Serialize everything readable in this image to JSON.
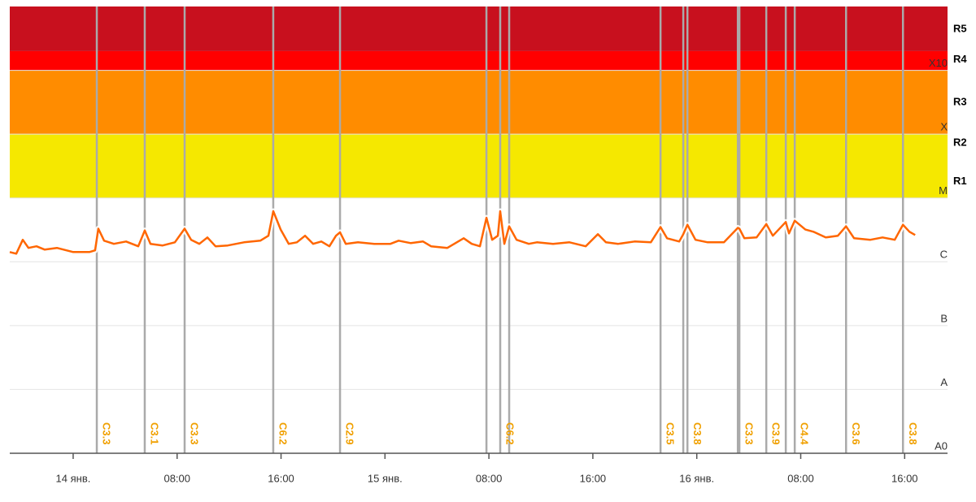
{
  "chart_data": {
    "type": "line",
    "xlim": [
      -4.88,
      67.3
    ],
    "xticks": [
      {
        "value": 0,
        "label": "14 янв."
      },
      {
        "value": 8,
        "label": "08:00"
      },
      {
        "value": 16,
        "label": "16:00"
      },
      {
        "value": 24,
        "label": "15 янв."
      },
      {
        "value": 32,
        "label": "08:00"
      },
      {
        "value": 40,
        "label": "16:00"
      },
      {
        "value": 48,
        "label": "16 янв."
      },
      {
        "value": 56,
        "label": "08:00"
      },
      {
        "value": 64,
        "label": "16:00"
      }
    ],
    "ylim": [
      1e-09,
      0.01
    ],
    "log_y": true,
    "yticks": [
      {
        "value": 1e-09,
        "label": "A0"
      },
      {
        "value": 1e-08,
        "label": "A"
      },
      {
        "value": 1e-07,
        "label": "B"
      },
      {
        "value": 1e-06,
        "label": "C"
      },
      {
        "value": 1e-05,
        "label": "M"
      },
      {
        "value": 0.0001,
        "label": "X"
      },
      {
        "value": 0.001,
        "label": "X10"
      }
    ],
    "bands": [
      {
        "from": 1e-05,
        "to": 0.0001,
        "color": "#f5e800"
      },
      {
        "from": 0.0001,
        "to": 0.001,
        "color": "#ff8c00"
      },
      {
        "from": 0.001,
        "to": 0.002,
        "color": "#ff0000"
      },
      {
        "from": 0.002,
        "to": 0.01,
        "color": "#c8101e"
      }
    ],
    "r_levels": [
      {
        "label": "R1",
        "value": 1.6e-05
      },
      {
        "label": "R2",
        "value": 6.5e-05
      },
      {
        "label": "R3",
        "value": 0.00028
      },
      {
        "label": "R4",
        "value": 0.0013
      },
      {
        "label": "R5",
        "value": 0.0039
      }
    ],
    "color": "#ff6600",
    "x": [
      -4.88,
      -4.38,
      -3.88,
      -3.44,
      -2.82,
      -2.19,
      -1.25,
      0,
      1.25,
      1.69,
      1.94,
      2.38,
      3.13,
      4.07,
      5.01,
      5.51,
      5.95,
      6.89,
      7.83,
      8.58,
      9.08,
      9.71,
      10.33,
      10.96,
      11.9,
      13.15,
      14.4,
      15.03,
      15.4,
      15.97,
      16.59,
      17.22,
      17.85,
      18.47,
      19.1,
      19.72,
      20.23,
      20.54,
      20.98,
      21.92,
      23.17,
      24.42,
      25.05,
      25.99,
      26.93,
      27.55,
      28.8,
      30.06,
      30.68,
      31.31,
      31.81,
      32.25,
      32.69,
      32.87,
      33.19,
      33.56,
      34.13,
      35.07,
      35.69,
      36.94,
      38.2,
      39.45,
      40.39,
      41.01,
      41.95,
      43.21,
      44.46,
      45.21,
      45.71,
      46.65,
      46.96,
      47.28,
      47.9,
      48.84,
      50.09,
      51.16,
      51.28,
      51.66,
      52.6,
      53.35,
      53.85,
      54.85,
      55.1,
      55.54,
      56.36,
      56.98,
      57.92,
      58.86,
      59.49,
      60.11,
      61.36,
      62.3,
      63.24,
      63.87,
      64.37,
      64.81
    ],
    "values": [
      1.42e-06,
      1.34e-06,
      2.21e-06,
      1.65e-06,
      1.75e-06,
      1.55e-06,
      1.65e-06,
      1.42e-06,
      1.42e-06,
      1.51e-06,
      3.3e-06,
      2.14e-06,
      1.91e-06,
      2.08e-06,
      1.75e-06,
      3.1e-06,
      1.91e-06,
      1.8e-06,
      2.02e-06,
      3.3e-06,
      2.21e-06,
      1.91e-06,
      2.41e-06,
      1.75e-06,
      1.8e-06,
      2.02e-06,
      2.14e-06,
      2.56e-06,
      6.2e-06,
      3.2e-06,
      1.91e-06,
      2.02e-06,
      2.56e-06,
      1.91e-06,
      2.08e-06,
      1.75e-06,
      2.56e-06,
      2.9e-06,
      1.91e-06,
      2.02e-06,
      1.91e-06,
      1.91e-06,
      2.14e-06,
      1.96e-06,
      2.08e-06,
      1.75e-06,
      1.65e-06,
      2.34e-06,
      1.91e-06,
      1.75e-06,
      4.9e-06,
      2.21e-06,
      2.56e-06,
      6.2e-06,
      1.91e-06,
      3.6e-06,
      2.21e-06,
      1.91e-06,
      2.02e-06,
      1.91e-06,
      2.02e-06,
      1.75e-06,
      2.71e-06,
      2.02e-06,
      1.91e-06,
      2.08e-06,
      2.02e-06,
      3.5e-06,
      2.34e-06,
      2.08e-06,
      2.71e-06,
      3.8e-06,
      2.21e-06,
      2.02e-06,
      2.02e-06,
      3.4e-06,
      3.3e-06,
      2.34e-06,
      2.41e-06,
      3.9e-06,
      2.56e-06,
      4.2e-06,
      2.79e-06,
      4.4e-06,
      3.2e-06,
      2.96e-06,
      2.41e-06,
      2.56e-06,
      3.6e-06,
      2.34e-06,
      2.21e-06,
      2.41e-06,
      2.21e-06,
      3.8e-06,
      2.96e-06,
      2.63e-06
    ],
    "flares": {
      "x": [
        1.82,
        5.51,
        8.58,
        15.4,
        20.54,
        31.81,
        32.87,
        33.56,
        45.21,
        46.96,
        47.28,
        51.16,
        51.28,
        53.35,
        54.85,
        55.54,
        59.49,
        63.87
      ],
      "labels": [
        "C3.3",
        "C3.1",
        "C3.3",
        "C6.2",
        "C2.9",
        null,
        "C6.2",
        null,
        "C3.5",
        null,
        "C3.8",
        null,
        "C3.3",
        "C3.9",
        null,
        "C4.4",
        "C3.6",
        "C3.8"
      ],
      "color": "#aaaaaa"
    }
  }
}
